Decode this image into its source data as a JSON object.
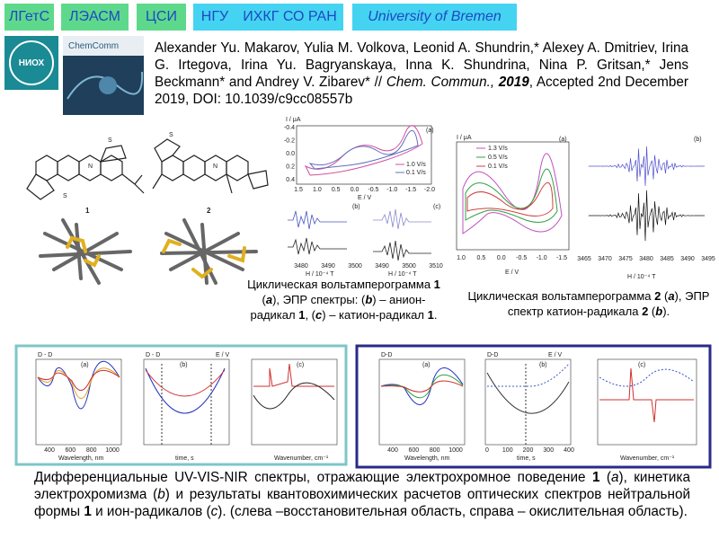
{
  "header": {
    "tags": [
      {
        "text": "ЛГетС",
        "color": "#5ed98c"
      },
      {
        "text": "ЛЭАСМ",
        "color": "#5ed98c"
      },
      {
        "text": "ЦСИ",
        "color": "#5ed98c"
      },
      {
        "text": "НГУ",
        "color": "#45d3f2"
      },
      {
        "text": "ИХКГ СО РАН",
        "color": "#45d3f2"
      },
      {
        "text": "University of Bremen",
        "color": "#45d3f2"
      }
    ]
  },
  "logo": {
    "text": "НИОХ"
  },
  "journal_cover": {
    "title": "ChemComm"
  },
  "citation": {
    "segments": [
      {
        "text": "Alexander Yu. Makarov, Yulia M. Volkova, Leonid A. Shundrin,* Alexey A. Dmitriev, Irina G. Irtegova, Irina Yu. Bagryanskaya, Inna K. Shundrina, Nina P. Gritsan,* Jens Beckmann* and Andrey V. Zibarev* // ",
        "style": "normal"
      },
      {
        "text": "Chem. Commun.,",
        "style": "italic"
      },
      {
        "text": " ",
        "style": "normal"
      },
      {
        "text": "2019",
        "style": "bold-italic"
      },
      {
        "text": ", Accepted 2nd December 2019, DOI: 10.1039/c9cc08557b",
        "style": "normal"
      }
    ]
  },
  "molecules": {
    "labels": [
      "1",
      "2"
    ],
    "atoms": [
      "S",
      "N"
    ]
  },
  "figures": {
    "cv_1": {
      "y_label": "I / μA",
      "x_label": "E / V",
      "panel": "(a)",
      "legend": [
        "1.0 V/s",
        "0.1 V/s"
      ],
      "xticks": [
        "1.5",
        "1.0",
        "0.5",
        "0.0",
        "-0.5",
        "-1.0",
        "-1.5",
        "-2.0"
      ],
      "yticks": [
        "-0.4",
        "-0.2",
        "0.0",
        "0.2",
        "0.4"
      ]
    },
    "epr_1": {
      "panels": [
        "(b)",
        "(c)"
      ],
      "x_label": "H / 10⁻⁴ T",
      "xticks_b": [
        "3480",
        "3490",
        "3500"
      ],
      "xticks_c": [
        "3490",
        "3500",
        "3510"
      ]
    },
    "cv_2": {
      "y_label": "I / μA",
      "x_label": "E / V",
      "panel": "(a)",
      "legend": [
        "1.3 V/s",
        "0.5 V/s",
        "0.1 V/s"
      ],
      "xticks": [
        "1.0",
        "0.5",
        "0.0",
        "-0.5",
        "-1.0",
        "-1.5"
      ]
    },
    "epr_2": {
      "panel": "(b)",
      "x_label": "H / 10⁻⁴ T",
      "xticks": [
        "3465",
        "3470",
        "3475",
        "3480",
        "3485",
        "3490",
        "3495"
      ]
    },
    "spectra_left": {
      "y_label": "D - D",
      "panels": [
        "(a)",
        "(b)",
        "(c)"
      ],
      "x_labels": [
        "Wavelength, nm",
        "time, s",
        "Wavenumber, cm⁻¹"
      ],
      "y2_label": "E / V",
      "xticks_a": [
        "400",
        "600",
        "800",
        "1000"
      ]
    },
    "spectra_right": {
      "y_label": "D-D",
      "panels": [
        "(a)",
        "(b)",
        "(c)"
      ],
      "x_labels": [
        "Wavelength, nm",
        "time, s",
        "Wavenumber, cm⁻¹"
      ],
      "y2_label": "E / V",
      "xticks_a": [
        "400",
        "600",
        "800",
        "1000"
      ],
      "xticks_b": [
        "0",
        "100",
        "200",
        "300",
        "400"
      ]
    }
  },
  "captions": {
    "cv_1": {
      "segments": [
        {
          "text": "Циклическая вольтамперограмма ",
          "style": "normal"
        },
        {
          "text": "1",
          "style": "bold"
        },
        {
          "text": " (",
          "style": "normal"
        },
        {
          "text": "a",
          "style": "bold-italic"
        },
        {
          "text": "), ЭПР спектры: (",
          "style": "normal"
        },
        {
          "text": "b",
          "style": "bold-italic"
        },
        {
          "text": ") – анион-радикал ",
          "style": "normal"
        },
        {
          "text": "1",
          "style": "bold"
        },
        {
          "text": ", (",
          "style": "normal"
        },
        {
          "text": "c",
          "style": "bold-italic"
        },
        {
          "text": ") – катион-радикал ",
          "style": "normal"
        },
        {
          "text": "1",
          "style": "bold"
        },
        {
          "text": ".",
          "style": "normal"
        }
      ]
    },
    "cv_2": {
      "segments": [
        {
          "text": "Циклическая вольтамперограмма ",
          "style": "normal"
        },
        {
          "text": "2",
          "style": "bold"
        },
        {
          "text": " (",
          "style": "normal"
        },
        {
          "text": "a",
          "style": "bold-italic"
        },
        {
          "text": "), ЭПР спектр катион-радикала ",
          "style": "normal"
        },
        {
          "text": "2",
          "style": "bold"
        },
        {
          "text": " (",
          "style": "normal"
        },
        {
          "text": "b",
          "style": "bold-italic"
        },
        {
          "text": ").",
          "style": "normal"
        }
      ]
    },
    "bottom": {
      "segments": [
        {
          "text": "Дифференциальные UV-VIS-NIR спектры, отражающие электрохромное поведение ",
          "style": "normal"
        },
        {
          "text": "1",
          "style": "bold"
        },
        {
          "text": " (",
          "style": "normal"
        },
        {
          "text": "a",
          "style": "italic"
        },
        {
          "text": "), кинетика электрохромизма (",
          "style": "normal"
        },
        {
          "text": "b",
          "style": "italic"
        },
        {
          "text": ") и результаты квантовохимических расчетов оптических спектров нейтральной формы ",
          "style": "normal"
        },
        {
          "text": "1",
          "style": "bold"
        },
        {
          "text": " и ион-радикалов (",
          "style": "normal"
        },
        {
          "text": "c",
          "style": "italic"
        },
        {
          "text": "). (слева –восстановительная область, справа – окислительная область).",
          "style": "normal"
        }
      ]
    }
  }
}
